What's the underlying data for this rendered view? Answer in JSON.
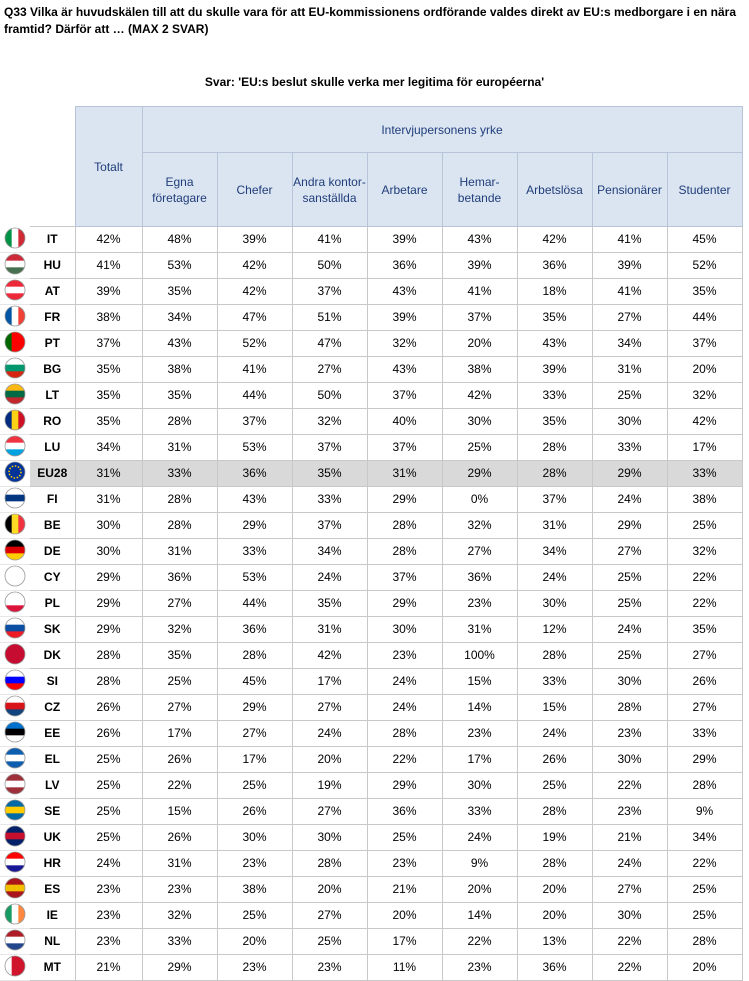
{
  "header": {
    "title": "Q33 Vilka är huvudskälen till att du skulle vara för att EU-kommissionens ordförande valdes direkt av EU:s medborgare i en nära framtid? Därför att … (MAX 2 SVAR)",
    "subtitle": "Svar: 'EU:s beslut skulle verka mer legitima för européerna'"
  },
  "table": {
    "total_header": "Totalt",
    "group_header": "Intervjupersonens yrke",
    "columns": [
      "Egna\nföretagare",
      "Chefer",
      "Andra kontor-\nsanställda",
      "Arbetare",
      "Hemar-\nbetande",
      "Arbetslösa",
      "Pensionärer",
      "Studenter"
    ],
    "rows": [
      {
        "code": "IT",
        "values": [
          "42%",
          "48%",
          "39%",
          "41%",
          "39%",
          "43%",
          "42%",
          "41%",
          "45%"
        ]
      },
      {
        "code": "HU",
        "values": [
          "41%",
          "53%",
          "42%",
          "50%",
          "36%",
          "39%",
          "36%",
          "39%",
          "52%"
        ]
      },
      {
        "code": "AT",
        "values": [
          "39%",
          "35%",
          "42%",
          "37%",
          "43%",
          "41%",
          "18%",
          "41%",
          "35%"
        ]
      },
      {
        "code": "FR",
        "values": [
          "38%",
          "34%",
          "47%",
          "51%",
          "39%",
          "37%",
          "35%",
          "27%",
          "44%"
        ]
      },
      {
        "code": "PT",
        "values": [
          "37%",
          "43%",
          "52%",
          "47%",
          "32%",
          "20%",
          "43%",
          "34%",
          "37%"
        ]
      },
      {
        "code": "BG",
        "values": [
          "35%",
          "38%",
          "41%",
          "27%",
          "43%",
          "38%",
          "39%",
          "31%",
          "20%"
        ]
      },
      {
        "code": "LT",
        "values": [
          "35%",
          "35%",
          "44%",
          "50%",
          "37%",
          "42%",
          "33%",
          "25%",
          "32%"
        ]
      },
      {
        "code": "RO",
        "values": [
          "35%",
          "28%",
          "37%",
          "32%",
          "40%",
          "30%",
          "35%",
          "30%",
          "42%"
        ]
      },
      {
        "code": "LU",
        "values": [
          "34%",
          "31%",
          "53%",
          "37%",
          "37%",
          "25%",
          "28%",
          "33%",
          "17%"
        ]
      },
      {
        "code": "EU28",
        "values": [
          "31%",
          "33%",
          "36%",
          "35%",
          "31%",
          "29%",
          "28%",
          "29%",
          "33%"
        ]
      },
      {
        "code": "FI",
        "values": [
          "31%",
          "28%",
          "43%",
          "33%",
          "29%",
          "0%",
          "37%",
          "24%",
          "38%"
        ]
      },
      {
        "code": "BE",
        "values": [
          "30%",
          "28%",
          "29%",
          "37%",
          "28%",
          "32%",
          "31%",
          "29%",
          "25%"
        ]
      },
      {
        "code": "DE",
        "values": [
          "30%",
          "31%",
          "33%",
          "34%",
          "28%",
          "27%",
          "34%",
          "27%",
          "32%"
        ]
      },
      {
        "code": "CY",
        "values": [
          "29%",
          "36%",
          "53%",
          "24%",
          "37%",
          "36%",
          "24%",
          "25%",
          "22%"
        ]
      },
      {
        "code": "PL",
        "values": [
          "29%",
          "27%",
          "44%",
          "35%",
          "29%",
          "23%",
          "30%",
          "25%",
          "22%"
        ]
      },
      {
        "code": "SK",
        "values": [
          "29%",
          "32%",
          "36%",
          "31%",
          "30%",
          "31%",
          "12%",
          "24%",
          "35%"
        ]
      },
      {
        "code": "DK",
        "values": [
          "28%",
          "35%",
          "28%",
          "42%",
          "23%",
          "100%",
          "28%",
          "25%",
          "27%"
        ]
      },
      {
        "code": "SI",
        "values": [
          "28%",
          "25%",
          "45%",
          "17%",
          "24%",
          "15%",
          "33%",
          "30%",
          "26%"
        ]
      },
      {
        "code": "CZ",
        "values": [
          "26%",
          "27%",
          "29%",
          "27%",
          "24%",
          "14%",
          "15%",
          "28%",
          "27%"
        ]
      },
      {
        "code": "EE",
        "values": [
          "26%",
          "17%",
          "27%",
          "24%",
          "28%",
          "23%",
          "24%",
          "23%",
          "33%"
        ]
      },
      {
        "code": "EL",
        "values": [
          "25%",
          "26%",
          "17%",
          "20%",
          "22%",
          "17%",
          "26%",
          "30%",
          "29%"
        ]
      },
      {
        "code": "LV",
        "values": [
          "25%",
          "22%",
          "25%",
          "19%",
          "29%",
          "30%",
          "25%",
          "22%",
          "28%"
        ]
      },
      {
        "code": "SE",
        "values": [
          "25%",
          "15%",
          "26%",
          "27%",
          "36%",
          "33%",
          "28%",
          "23%",
          "9%"
        ]
      },
      {
        "code": "UK",
        "values": [
          "25%",
          "26%",
          "30%",
          "30%",
          "25%",
          "24%",
          "19%",
          "21%",
          "34%"
        ]
      },
      {
        "code": "HR",
        "values": [
          "24%",
          "31%",
          "23%",
          "28%",
          "23%",
          "9%",
          "28%",
          "24%",
          "22%"
        ]
      },
      {
        "code": "ES",
        "values": [
          "23%",
          "23%",
          "38%",
          "20%",
          "21%",
          "20%",
          "20%",
          "27%",
          "25%"
        ]
      },
      {
        "code": "IE",
        "values": [
          "23%",
          "32%",
          "25%",
          "27%",
          "20%",
          "14%",
          "20%",
          "30%",
          "25%"
        ]
      },
      {
        "code": "NL",
        "values": [
          "23%",
          "33%",
          "20%",
          "25%",
          "17%",
          "22%",
          "13%",
          "22%",
          "28%"
        ]
      },
      {
        "code": "MT",
        "values": [
          "21%",
          "29%",
          "23%",
          "23%",
          "11%",
          "23%",
          "36%",
          "22%",
          "20%"
        ]
      }
    ]
  }
}
